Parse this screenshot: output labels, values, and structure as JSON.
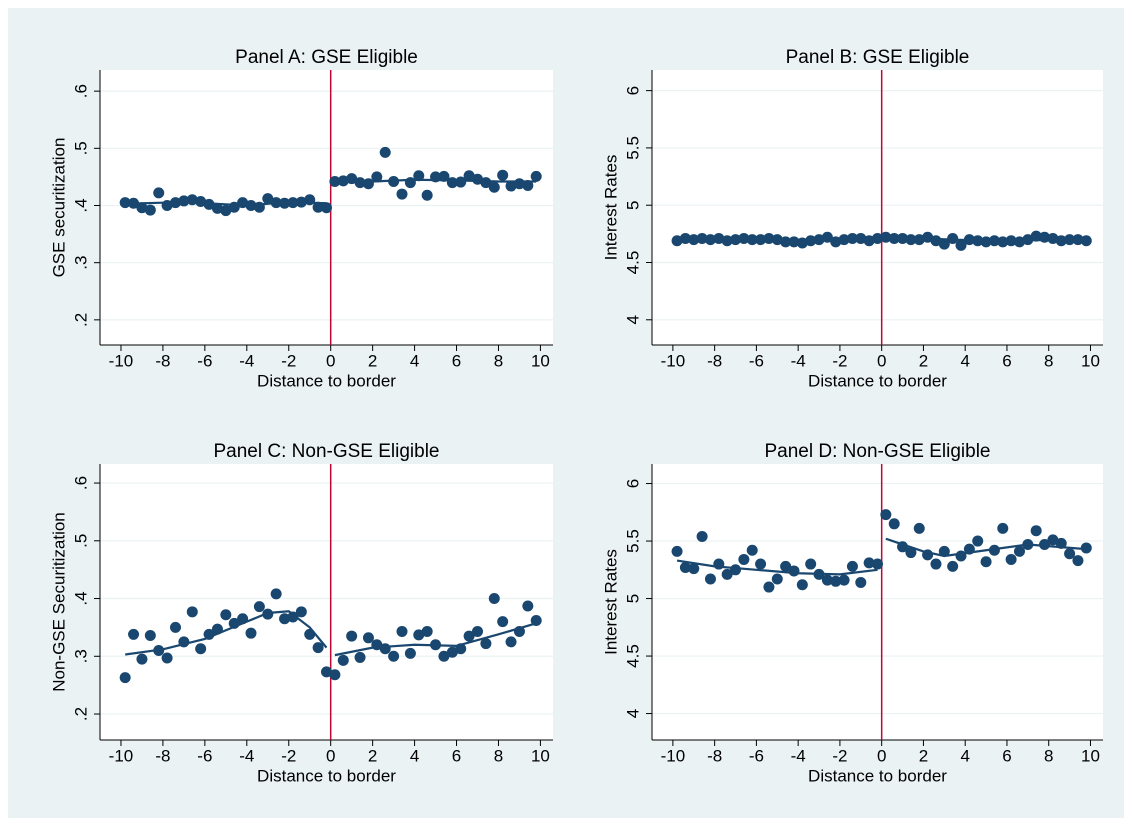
{
  "chart_data": [
    {
      "type": "scatter",
      "title": "Panel A: GSE Eligible",
      "x_label": "Distance to border",
      "y_label": "GSE securitization",
      "xlim": [
        -11,
        10.6
      ],
      "ylim": [
        0.156,
        0.637
      ],
      "xticks": [
        -10,
        -8,
        -6,
        -4,
        -2,
        0,
        2,
        4,
        6,
        8,
        10
      ],
      "yticks": [
        {
          "value": 0.2,
          "label": ".2"
        },
        {
          "value": 0.3,
          "label": ".3"
        },
        {
          "value": 0.4,
          "label": ".4"
        },
        {
          "value": 0.5,
          "label": ".5"
        },
        {
          "value": 0.6,
          "label": ".6"
        }
      ],
      "grid": true,
      "vline": 0,
      "vline_color": "#c10534",
      "series": [
        {
          "mode": "markers",
          "color": "#1a476f",
          "x": [
            -9.8,
            -9.4,
            -9,
            -8.6,
            -8.2,
            -7.8,
            -7.4,
            -7,
            -6.6,
            -6.2,
            -5.8,
            -5.4,
            -5,
            -4.6,
            -4.2,
            -3.8,
            -3.4,
            -3,
            -2.6,
            -2.2,
            -1.8,
            -1.4,
            -1,
            -0.6,
            -0.2,
            0.2,
            0.6,
            1,
            1.4,
            1.8,
            2.2,
            2.6,
            3,
            3.4,
            3.8,
            4.2,
            4.6,
            5,
            5.4,
            5.8,
            6.2,
            6.6,
            7,
            7.4,
            7.8,
            8.2,
            8.6,
            9,
            9.4,
            9.8
          ],
          "values": [
            0.405,
            0.404,
            0.396,
            0.392,
            0.422,
            0.4,
            0.405,
            0.408,
            0.41,
            0.407,
            0.402,
            0.395,
            0.391,
            0.397,
            0.405,
            0.4,
            0.397,
            0.412,
            0.405,
            0.404,
            0.405,
            0.406,
            0.41,
            0.397,
            0.396,
            0.442,
            0.443,
            0.447,
            0.44,
            0.438,
            0.45,
            0.493,
            0.442,
            0.42,
            0.44,
            0.452,
            0.418,
            0.45,
            0.451,
            0.44,
            0.441,
            0.452,
            0.446,
            0.44,
            0.432,
            0.453,
            0.434,
            0.438,
            0.435,
            0.451
          ]
        },
        {
          "mode": "line",
          "color": "#1a476f",
          "x": [
            -9.8,
            -7,
            -4,
            -2,
            -0.2
          ],
          "values": [
            0.403,
            0.406,
            0.4,
            0.406,
            0.404
          ]
        },
        {
          "mode": "line",
          "color": "#1a476f",
          "x": [
            0.2,
            2,
            4,
            6,
            8,
            9.8
          ],
          "values": [
            0.442,
            0.442,
            0.445,
            0.444,
            0.442,
            0.442
          ]
        }
      ]
    },
    {
      "type": "scatter",
      "title": "Panel B: GSE Eligible",
      "x_label": "Distance to border",
      "y_label": "Interest Rates",
      "xlim": [
        -11,
        10.6
      ],
      "ylim": [
        3.78,
        6.18
      ],
      "xticks": [
        -10,
        -8,
        -6,
        -4,
        -2,
        0,
        2,
        4,
        6,
        8,
        10
      ],
      "yticks": [
        4,
        4.5,
        5,
        5.5,
        6
      ],
      "grid": true,
      "vline": 0,
      "vline_color": "#c10534",
      "series": [
        {
          "mode": "markers",
          "color": "#1a476f",
          "x": [
            -9.8,
            -9.4,
            -9,
            -8.6,
            -8.2,
            -7.8,
            -7.4,
            -7,
            -6.6,
            -6.2,
            -5.8,
            -5.4,
            -5,
            -4.6,
            -4.2,
            -3.8,
            -3.4,
            -3,
            -2.6,
            -2.2,
            -1.8,
            -1.4,
            -1,
            -0.6,
            -0.2,
            0.2,
            0.6,
            1,
            1.4,
            1.8,
            2.2,
            2.6,
            3,
            3.4,
            3.8,
            4.2,
            4.6,
            5,
            5.4,
            5.8,
            6.2,
            6.6,
            7,
            7.4,
            7.8,
            8.2,
            8.6,
            9,
            9.4,
            9.8
          ],
          "values": [
            4.69,
            4.71,
            4.7,
            4.71,
            4.7,
            4.71,
            4.69,
            4.7,
            4.71,
            4.7,
            4.7,
            4.71,
            4.7,
            4.68,
            4.68,
            4.67,
            4.69,
            4.7,
            4.72,
            4.68,
            4.7,
            4.71,
            4.71,
            4.69,
            4.71,
            4.72,
            4.71,
            4.71,
            4.7,
            4.7,
            4.72,
            4.69,
            4.66,
            4.71,
            4.65,
            4.7,
            4.69,
            4.68,
            4.69,
            4.68,
            4.69,
            4.68,
            4.7,
            4.73,
            4.72,
            4.71,
            4.69,
            4.7,
            4.7,
            4.69
          ]
        },
        {
          "mode": "line",
          "color": "#1a476f",
          "x": [
            -9.8,
            -5,
            -0.2
          ],
          "values": [
            4.7,
            4.7,
            4.7
          ]
        },
        {
          "mode": "line",
          "color": "#1a476f",
          "x": [
            0.2,
            5,
            9.8
          ],
          "values": [
            4.72,
            4.69,
            4.7
          ]
        }
      ]
    },
    {
      "type": "scatter",
      "title": "Panel C: Non-GSE Eligible",
      "x_label": "Distance to border",
      "y_label": "Non-GSE Securitization",
      "xlim": [
        -11,
        10.6
      ],
      "ylim": [
        0.155,
        0.633
      ],
      "xticks": [
        -10,
        -8,
        -6,
        -4,
        -2,
        0,
        2,
        4,
        6,
        8,
        10
      ],
      "yticks": [
        {
          "value": 0.2,
          "label": ".2"
        },
        {
          "value": 0.3,
          "label": ".3"
        },
        {
          "value": 0.4,
          "label": ".4"
        },
        {
          "value": 0.5,
          "label": ".5"
        },
        {
          "value": 0.6,
          "label": ".6"
        }
      ],
      "grid": true,
      "vline": 0,
      "vline_color": "#c10534",
      "series": [
        {
          "mode": "markers",
          "color": "#1a476f",
          "x": [
            -9.8,
            -9.4,
            -9,
            -8.6,
            -8.2,
            -7.8,
            -7.4,
            -7,
            -6.6,
            -6.2,
            -5.8,
            -5.4,
            -5,
            -4.6,
            -4.2,
            -3.8,
            -3.4,
            -3,
            -2.6,
            -2.2,
            -1.8,
            -1.4,
            -1,
            -0.6,
            -0.2,
            0.2,
            0.6,
            1,
            1.4,
            1.8,
            2.2,
            2.6,
            3,
            3.4,
            3.8,
            4.2,
            4.6,
            5,
            5.4,
            5.8,
            6.2,
            6.6,
            7,
            7.4,
            7.8,
            8.2,
            8.6,
            9,
            9.4,
            9.8
          ],
          "values": [
            0.263,
            0.338,
            0.295,
            0.336,
            0.31,
            0.297,
            0.35,
            0.325,
            0.377,
            0.313,
            0.338,
            0.347,
            0.372,
            0.357,
            0.365,
            0.34,
            0.386,
            0.373,
            0.408,
            0.365,
            0.368,
            0.377,
            0.338,
            0.315,
            0.273,
            0.268,
            0.293,
            0.335,
            0.298,
            0.332,
            0.32,
            0.313,
            0.3,
            0.343,
            0.305,
            0.337,
            0.343,
            0.32,
            0.3,
            0.307,
            0.313,
            0.335,
            0.343,
            0.322,
            0.4,
            0.36,
            0.325,
            0.343,
            0.387,
            0.362
          ]
        },
        {
          "mode": "line",
          "color": "#1a476f",
          "x": [
            -9.8,
            -8,
            -6,
            -4,
            -3,
            -2,
            -1,
            -0.2
          ],
          "values": [
            0.303,
            0.312,
            0.33,
            0.36,
            0.375,
            0.378,
            0.35,
            0.315
          ]
        },
        {
          "mode": "line",
          "color": "#1a476f",
          "x": [
            0.2,
            2,
            4,
            6,
            8,
            9.8
          ],
          "values": [
            0.302,
            0.315,
            0.32,
            0.318,
            0.338,
            0.357
          ]
        }
      ]
    },
    {
      "type": "scatter",
      "title": "Panel D: Non-GSE Eligible",
      "x_label": "Distance to border",
      "y_label": "Interest Rates",
      "xlim": [
        -11,
        10.6
      ],
      "ylim": [
        3.77,
        6.17
      ],
      "xticks": [
        -10,
        -8,
        -6,
        -4,
        -2,
        0,
        2,
        4,
        6,
        8,
        10
      ],
      "yticks": [
        4,
        4.5,
        5,
        5.5,
        6
      ],
      "grid": true,
      "vline": 0,
      "vline_color": "#c10534",
      "series": [
        {
          "mode": "markers",
          "color": "#1a476f",
          "x": [
            -9.8,
            -9.4,
            -9,
            -8.6,
            -8.2,
            -7.8,
            -7.4,
            -7,
            -6.6,
            -6.2,
            -5.8,
            -5.4,
            -5,
            -4.6,
            -4.2,
            -3.8,
            -3.4,
            -3,
            -2.6,
            -2.2,
            -1.8,
            -1.4,
            -1,
            -0.6,
            -0.2,
            0.2,
            0.6,
            1,
            1.4,
            1.8,
            2.2,
            2.6,
            3,
            3.4,
            3.8,
            4.2,
            4.6,
            5,
            5.4,
            5.8,
            6.2,
            6.6,
            7,
            7.4,
            7.8,
            8.2,
            8.6,
            9,
            9.4,
            9.8
          ],
          "values": [
            5.41,
            5.27,
            5.26,
            5.54,
            5.17,
            5.3,
            5.21,
            5.25,
            5.34,
            5.42,
            5.3,
            5.1,
            5.17,
            5.28,
            5.24,
            5.12,
            5.3,
            5.21,
            5.16,
            5.15,
            5.16,
            5.28,
            5.14,
            5.31,
            5.3,
            5.73,
            5.65,
            5.45,
            5.4,
            5.61,
            5.38,
            5.3,
            5.41,
            5.28,
            5.37,
            5.43,
            5.5,
            5.32,
            5.42,
            5.61,
            5.34,
            5.41,
            5.47,
            5.59,
            5.47,
            5.51,
            5.48,
            5.39,
            5.33,
            5.44
          ]
        },
        {
          "mode": "line",
          "color": "#1a476f",
          "x": [
            -9.8,
            -8,
            -6,
            -4,
            -2,
            -0.2
          ],
          "values": [
            5.33,
            5.28,
            5.25,
            5.22,
            5.21,
            5.25
          ]
        },
        {
          "mode": "line",
          "color": "#1a476f",
          "x": [
            0.2,
            2,
            3,
            5,
            7,
            9.8
          ],
          "values": [
            5.52,
            5.41,
            5.37,
            5.42,
            5.47,
            5.43
          ]
        }
      ]
    }
  ]
}
